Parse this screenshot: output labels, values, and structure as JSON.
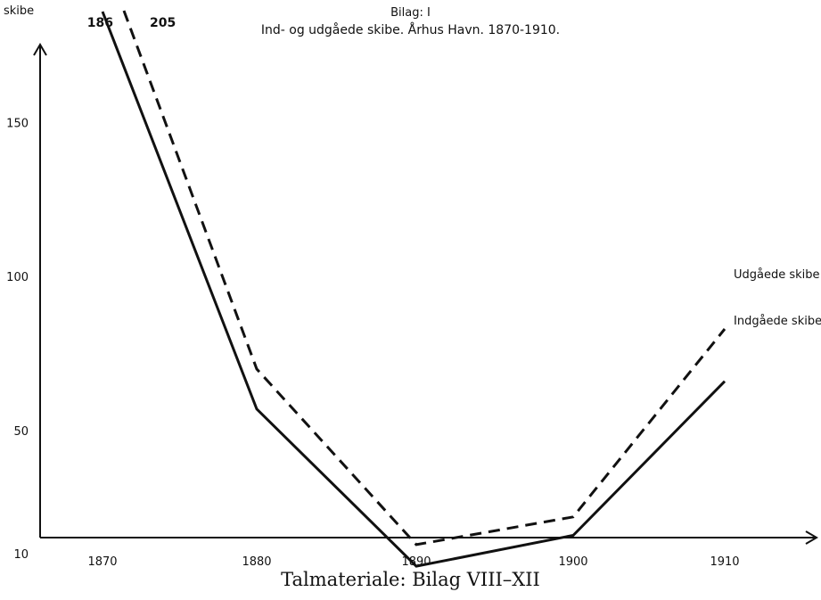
{
  "chart_data": {
    "type": "line",
    "title": "Bilag: I",
    "subtitle": "Ind- og udgåede skibe. Århus Havn. 1870-1910.",
    "ylabel": "skibe",
    "xlabel": "",
    "x": [
      1870,
      1880,
      1890,
      1900,
      1910
    ],
    "x_ticks": [
      "1870",
      "1880",
      "1890",
      "1900",
      "1910"
    ],
    "y_ticks": [
      10,
      50,
      100,
      150
    ],
    "ylim": [
      0,
      170
    ],
    "series": [
      {
        "name": "Indgåede skibe",
        "style": "solid",
        "values": [
          186,
          57,
          6,
          16,
          66
        ],
        "start_label": "186"
      },
      {
        "name": "Udgåede skibe",
        "style": "dashed",
        "values": [
          205,
          70,
          13,
          22,
          83
        ],
        "start_label": "205"
      }
    ],
    "source_note": "Talmateriale: Bilag VIII–XII",
    "grid": false,
    "legend": "line-end labels",
    "colors": {
      "line": "#111111",
      "background": "#ffffff"
    }
  }
}
